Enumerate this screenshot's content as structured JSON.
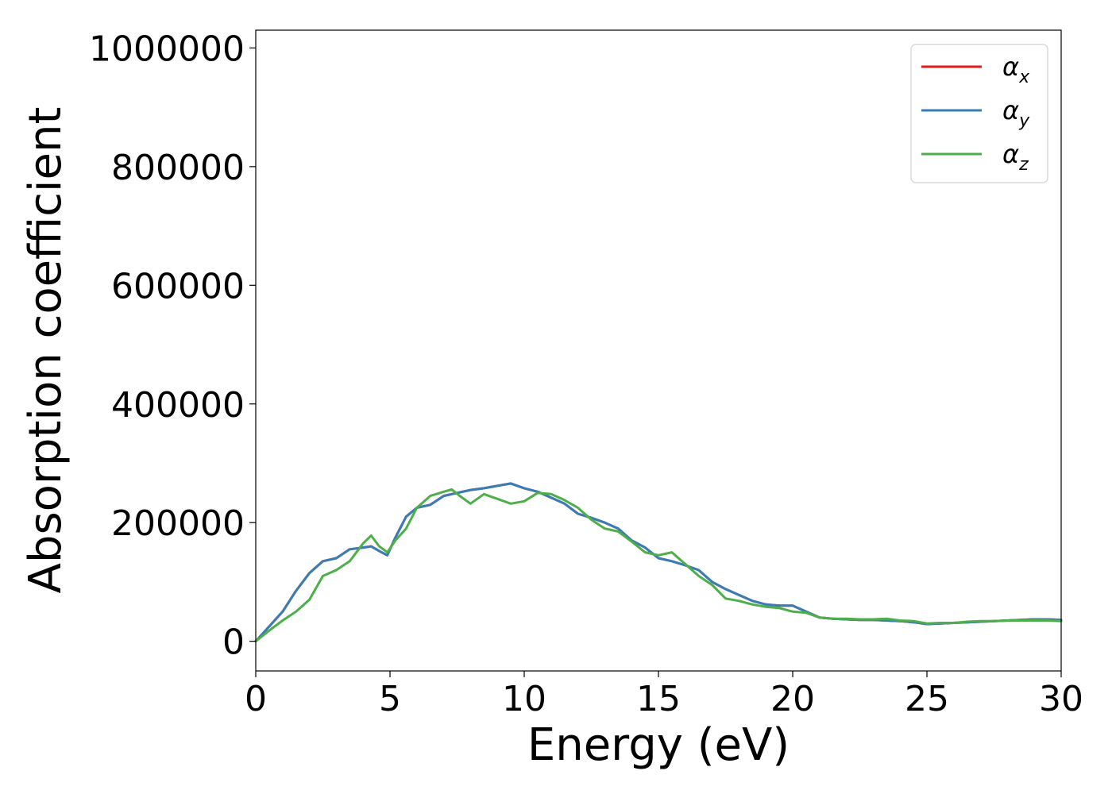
{
  "chart_data": {
    "type": "line",
    "title": "",
    "xlabel": "Energy (eV)",
    "ylabel": "Absorption coefficient",
    "xlim": [
      0,
      30
    ],
    "ylim": [
      -50000,
      1030000
    ],
    "xticks": [
      0,
      5,
      10,
      15,
      20,
      25,
      30
    ],
    "xtick_labels": [
      "0",
      "5",
      "10",
      "15",
      "20",
      "25",
      "30"
    ],
    "yticks": [
      0,
      200000,
      400000,
      600000,
      800000,
      1000000
    ],
    "ytick_labels": [
      "0",
      "200000",
      "400000",
      "600000",
      "800000",
      "1000000"
    ],
    "grid": false,
    "legend": {
      "placement": "top-right"
    },
    "series": [
      {
        "name": "α_x",
        "legend_base": "α",
        "legend_sub": "x",
        "color": "#e41a1c",
        "x": [
          0,
          0.5,
          1.0,
          1.5,
          2.0,
          2.5,
          3.0,
          3.5,
          4.0,
          4.3,
          4.6,
          4.9,
          5.2,
          5.6,
          6.0,
          6.5,
          7.0,
          7.5,
          8.0,
          8.5,
          9.0,
          9.5,
          10.0,
          10.5,
          11.0,
          11.5,
          12.0,
          12.5,
          13.0,
          13.5,
          14.0,
          14.5,
          15.0,
          15.5,
          16.0,
          16.5,
          17.0,
          17.5,
          18.0,
          18.5,
          19.0,
          19.5,
          20.0,
          20.5,
          21.0,
          21.5,
          22.0,
          22.5,
          23.0,
          23.5,
          24.0,
          24.5,
          25.0,
          25.5,
          26.0,
          26.5,
          27.0,
          27.5,
          28.0,
          28.5,
          29.0,
          29.5,
          30.0
        ],
        "y": [
          0,
          25000,
          50000,
          85000,
          115000,
          135000,
          140000,
          155000,
          158000,
          160000,
          152000,
          145000,
          175000,
          210000,
          225000,
          230000,
          245000,
          250000,
          255000,
          258000,
          262000,
          266000,
          258000,
          252000,
          242000,
          232000,
          215000,
          208000,
          200000,
          190000,
          170000,
          158000,
          140000,
          135000,
          128000,
          120000,
          100000,
          88000,
          78000,
          68000,
          62000,
          60000,
          60000,
          50000,
          40000,
          38000,
          37000,
          36000,
          36000,
          35000,
          34000,
          32000,
          29000,
          30000,
          31000,
          32000,
          33000,
          34000,
          35000,
          36000,
          37000,
          37000,
          36000
        ]
      },
      {
        "name": "α_y",
        "legend_base": "α",
        "legend_sub": "y",
        "color": "#377eb8",
        "x": [
          0,
          0.5,
          1.0,
          1.5,
          2.0,
          2.5,
          3.0,
          3.5,
          4.0,
          4.3,
          4.6,
          4.9,
          5.2,
          5.6,
          6.0,
          6.5,
          7.0,
          7.5,
          8.0,
          8.5,
          9.0,
          9.5,
          10.0,
          10.5,
          11.0,
          11.5,
          12.0,
          12.5,
          13.0,
          13.5,
          14.0,
          14.5,
          15.0,
          15.5,
          16.0,
          16.5,
          17.0,
          17.5,
          18.0,
          18.5,
          19.0,
          19.5,
          20.0,
          20.5,
          21.0,
          21.5,
          22.0,
          22.5,
          23.0,
          23.5,
          24.0,
          24.5,
          25.0,
          25.5,
          26.0,
          26.5,
          27.0,
          27.5,
          28.0,
          28.5,
          29.0,
          29.5,
          30.0
        ],
        "y": [
          0,
          25000,
          50000,
          85000,
          115000,
          135000,
          140000,
          155000,
          158000,
          160000,
          152000,
          145000,
          175000,
          210000,
          225000,
          230000,
          245000,
          250000,
          255000,
          258000,
          262000,
          266000,
          258000,
          252000,
          242000,
          232000,
          215000,
          208000,
          200000,
          190000,
          170000,
          158000,
          140000,
          135000,
          128000,
          120000,
          100000,
          88000,
          78000,
          68000,
          62000,
          60000,
          60000,
          50000,
          40000,
          38000,
          37000,
          36000,
          36000,
          35000,
          34000,
          32000,
          29000,
          30000,
          31000,
          32000,
          33000,
          34000,
          35000,
          36000,
          37000,
          37000,
          36000
        ]
      },
      {
        "name": "α_z",
        "legend_base": "α",
        "legend_sub": "z",
        "color": "#4daf4a",
        "x": [
          0,
          0.5,
          1.0,
          1.5,
          2.0,
          2.5,
          3.0,
          3.5,
          4.0,
          4.3,
          4.6,
          4.9,
          5.2,
          5.6,
          6.0,
          6.5,
          7.0,
          7.3,
          7.6,
          8.0,
          8.5,
          9.0,
          9.5,
          10.0,
          10.5,
          11.0,
          11.5,
          12.0,
          12.5,
          13.0,
          13.5,
          14.0,
          14.5,
          15.0,
          15.5,
          16.0,
          16.5,
          17.0,
          17.5,
          18.0,
          18.5,
          19.0,
          19.5,
          20.0,
          20.5,
          21.0,
          21.5,
          22.0,
          22.5,
          23.0,
          23.5,
          24.0,
          24.5,
          25.0,
          25.5,
          26.0,
          26.5,
          27.0,
          27.5,
          28.0,
          28.5,
          29.0,
          29.5,
          30.0
        ],
        "y": [
          0,
          18000,
          35000,
          50000,
          70000,
          110000,
          120000,
          135000,
          165000,
          178000,
          160000,
          150000,
          170000,
          190000,
          225000,
          245000,
          252000,
          256000,
          245000,
          232000,
          248000,
          240000,
          232000,
          236000,
          250000,
          248000,
          238000,
          225000,
          205000,
          190000,
          185000,
          168000,
          150000,
          145000,
          150000,
          130000,
          110000,
          95000,
          72000,
          68000,
          62000,
          58000,
          56000,
          50000,
          48000,
          40000,
          38000,
          38000,
          37000,
          37000,
          38000,
          35000,
          34000,
          30000,
          31000,
          31000,
          33000,
          34000,
          34000,
          35000,
          35000,
          35000,
          35000,
          34000
        ]
      }
    ]
  }
}
